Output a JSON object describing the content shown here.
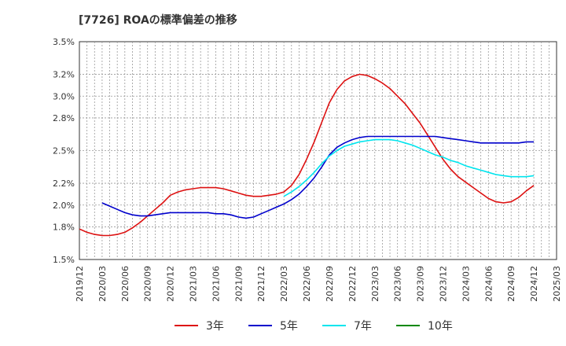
{
  "chart_data": {
    "type": "line",
    "title": "[7726]  ROAの標準偏差の推移",
    "xlabel": "",
    "ylabel": "",
    "x_ticks": [
      "2019/12",
      "2020/03",
      "2020/06",
      "2020/09",
      "2020/12",
      "2021/03",
      "2021/06",
      "2021/09",
      "2021/12",
      "2022/03",
      "2022/06",
      "2022/09",
      "2022/12",
      "2023/03",
      "2023/06",
      "2023/09",
      "2023/12",
      "2024/03",
      "2024/06",
      "2024/09",
      "2024/12",
      "2025/03"
    ],
    "y_ticks": [
      "1.5%",
      "1.8%",
      "2.0%",
      "2.2%",
      "2.5%",
      "2.8%",
      "3.0%",
      "3.2%",
      "3.5%"
    ],
    "ylim": [
      1.5,
      3.5
    ],
    "grid": true,
    "legend_position": "bottom",
    "series": [
      {
        "name": "3年",
        "color": "#dd1111",
        "x": [
          "2019/12",
          "2020/01",
          "2020/02",
          "2020/03",
          "2020/04",
          "2020/05",
          "2020/06",
          "2020/07",
          "2020/08",
          "2020/09",
          "2020/10",
          "2020/11",
          "2020/12",
          "2021/01",
          "2021/02",
          "2021/03",
          "2021/04",
          "2021/05",
          "2021/06",
          "2021/07",
          "2021/08",
          "2021/09",
          "2021/10",
          "2021/11",
          "2021/12",
          "2022/01",
          "2022/02",
          "2022/03",
          "2022/04",
          "2022/05",
          "2022/06",
          "2022/07",
          "2022/08",
          "2022/09",
          "2022/10",
          "2022/11",
          "2022/12",
          "2023/01",
          "2023/02",
          "2023/03",
          "2023/04",
          "2023/05",
          "2023/06",
          "2023/07",
          "2023/08",
          "2023/09",
          "2023/10",
          "2023/11",
          "2023/12",
          "2024/01",
          "2024/02",
          "2024/03",
          "2024/04",
          "2024/05",
          "2024/06",
          "2024/07",
          "2024/08",
          "2024/09",
          "2024/10",
          "2024/11",
          "2024/12"
        ],
        "values": [
          1.78,
          1.75,
          1.73,
          1.72,
          1.72,
          1.73,
          1.75,
          1.79,
          1.84,
          1.9,
          1.96,
          2.02,
          2.09,
          2.12,
          2.14,
          2.15,
          2.16,
          2.16,
          2.16,
          2.15,
          2.13,
          2.11,
          2.09,
          2.08,
          2.08,
          2.09,
          2.1,
          2.12,
          2.18,
          2.28,
          2.42,
          2.58,
          2.76,
          2.94,
          3.06,
          3.14,
          3.18,
          3.2,
          3.19,
          3.16,
          3.12,
          3.07,
          3.0,
          2.93,
          2.84,
          2.75,
          2.64,
          2.53,
          2.42,
          2.33,
          2.26,
          2.21,
          2.16,
          2.11,
          2.06,
          2.03,
          2.02,
          2.03,
          2.07,
          2.13,
          2.18
        ]
      },
      {
        "name": "5年",
        "color": "#0000cc",
        "x": [
          "2020/03",
          "2020/04",
          "2020/05",
          "2020/06",
          "2020/07",
          "2020/08",
          "2020/09",
          "2020/10",
          "2020/11",
          "2020/12",
          "2021/01",
          "2021/02",
          "2021/03",
          "2021/04",
          "2021/05",
          "2021/06",
          "2021/07",
          "2021/08",
          "2021/09",
          "2021/10",
          "2021/11",
          "2021/12",
          "2022/01",
          "2022/02",
          "2022/03",
          "2022/04",
          "2022/05",
          "2022/06",
          "2022/07",
          "2022/08",
          "2022/09",
          "2022/10",
          "2022/11",
          "2022/12",
          "2023/01",
          "2023/02",
          "2023/03",
          "2023/04",
          "2023/05",
          "2023/06",
          "2023/07",
          "2023/08",
          "2023/09",
          "2023/10",
          "2023/11",
          "2023/12",
          "2024/01",
          "2024/02",
          "2024/03",
          "2024/04",
          "2024/05",
          "2024/06",
          "2024/07",
          "2024/08",
          "2024/09",
          "2024/10",
          "2024/11",
          "2024/12"
        ],
        "values": [
          2.02,
          1.99,
          1.96,
          1.93,
          1.91,
          1.9,
          1.9,
          1.91,
          1.92,
          1.93,
          1.93,
          1.93,
          1.93,
          1.93,
          1.93,
          1.92,
          1.92,
          1.91,
          1.89,
          1.88,
          1.89,
          1.92,
          1.95,
          1.98,
          2.01,
          2.05,
          2.1,
          2.17,
          2.25,
          2.35,
          2.46,
          2.53,
          2.57,
          2.6,
          2.62,
          2.63,
          2.63,
          2.63,
          2.63,
          2.63,
          2.63,
          2.63,
          2.63,
          2.63,
          2.63,
          2.62,
          2.61,
          2.6,
          2.59,
          2.58,
          2.57,
          2.57,
          2.57,
          2.57,
          2.57,
          2.57,
          2.58,
          2.58
        ]
      },
      {
        "name": "7年",
        "color": "#00e5ee",
        "x": [
          "2022/03",
          "2022/04",
          "2022/05",
          "2022/06",
          "2022/07",
          "2022/08",
          "2022/09",
          "2022/10",
          "2022/11",
          "2022/12",
          "2023/01",
          "2023/02",
          "2023/03",
          "2023/04",
          "2023/05",
          "2023/06",
          "2023/07",
          "2023/08",
          "2023/09",
          "2023/10",
          "2023/11",
          "2023/12",
          "2024/01",
          "2024/02",
          "2024/03",
          "2024/04",
          "2024/05",
          "2024/06",
          "2024/07",
          "2024/08",
          "2024/09",
          "2024/10",
          "2024/11",
          "2024/12"
        ],
        "values": [
          2.08,
          2.12,
          2.17,
          2.23,
          2.3,
          2.38,
          2.45,
          2.5,
          2.54,
          2.56,
          2.58,
          2.59,
          2.6,
          2.6,
          2.6,
          2.59,
          2.57,
          2.55,
          2.52,
          2.49,
          2.46,
          2.44,
          2.41,
          2.39,
          2.36,
          2.34,
          2.32,
          2.3,
          2.28,
          2.27,
          2.26,
          2.26,
          2.26,
          2.27
        ]
      },
      {
        "name": "10年",
        "color": "#008800",
        "x": [],
        "values": []
      }
    ]
  }
}
